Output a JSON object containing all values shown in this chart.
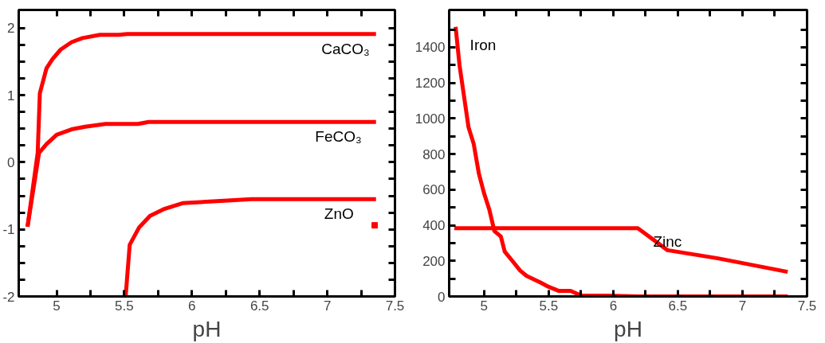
{
  "chart_data": [
    {
      "type": "line",
      "xlabel": "pH",
      "xlim": [
        4.72,
        7.5
      ],
      "ylim": [
        -2,
        2.27
      ],
      "xticks": [
        5,
        {
          "value": 5.25,
          "label": null
        },
        5.5,
        {
          "value": 5.75,
          "label": null
        },
        6,
        {
          "value": 6.25,
          "label": null
        },
        6.5,
        {
          "value": 6.75,
          "label": null
        },
        7,
        {
          "value": 7.25,
          "label": null
        },
        7.5
      ],
      "yticks": [
        -2,
        {
          "value": -1.75,
          "label": null
        },
        {
          "value": -1.5,
          "label": null
        },
        {
          "value": -1.25,
          "label": null
        },
        -1,
        {
          "value": -0.75,
          "label": null
        },
        {
          "value": -0.5,
          "label": null
        },
        {
          "value": -0.25,
          "label": null
        },
        0,
        {
          "value": 0.25,
          "label": null
        },
        {
          "value": 0.5,
          "label": null
        },
        {
          "value": 0.75,
          "label": null
        },
        1,
        {
          "value": 1.25,
          "label": null
        },
        {
          "value": 1.5,
          "label": null
        },
        {
          "value": 1.75,
          "label": null
        },
        2
      ],
      "grid": false,
      "line_style": "solid",
      "series": [
        {
          "name": "CaCO₃",
          "color": "#ff0000",
          "x": [
            4.785,
            4.86,
            4.876,
            4.9,
            4.925,
            4.97,
            5.03,
            5.11,
            5.19,
            5.32,
            5.46,
            5.52,
            7.36
          ],
          "values": [
            -0.96,
            0.14,
            1.03,
            1.21,
            1.4,
            1.54,
            1.68,
            1.79,
            1.85,
            1.9,
            1.9,
            1.91,
            1.91
          ]
        },
        {
          "name": "FeCO₃",
          "color": "#ff0000",
          "x": [
            4.785,
            4.87,
            4.925,
            5.0,
            5.11,
            5.21,
            5.36,
            5.6,
            5.68,
            7.36
          ],
          "values": [
            -0.96,
            0.14,
            0.27,
            0.41,
            0.49,
            0.53,
            0.57,
            0.57,
            0.6,
            0.6
          ]
        },
        {
          "name": "ZnO",
          "color": "#ff0000",
          "x": [
            5.51,
            5.54,
            5.61,
            5.69,
            5.79,
            5.93,
            6.44,
            7.36
          ],
          "values": [
            -2.0,
            -1.23,
            -0.97,
            -0.8,
            -0.7,
            -0.61,
            -0.55,
            -0.55
          ]
        },
        {
          "type": "scatter",
          "marker": "square",
          "color": "#ff0000",
          "x": [
            7.35
          ],
          "values": [
            -0.94
          ]
        }
      ]
    },
    {
      "type": "line",
      "xlabel": "pH",
      "xlim": [
        4.73,
        7.5
      ],
      "ylim": [
        0,
        1610
      ],
      "xticks": [
        5,
        {
          "value": 5.25,
          "label": null
        },
        5.5,
        {
          "value": 5.75,
          "label": null
        },
        6,
        {
          "value": 6.25,
          "label": null
        },
        6.5,
        {
          "value": 6.75,
          "label": null
        },
        7,
        {
          "value": 7.25,
          "label": null
        },
        7.5
      ],
      "yticks": [
        0,
        {
          "value": 100,
          "label": null
        },
        200,
        {
          "value": 300,
          "label": null
        },
        400,
        {
          "value": 500,
          "label": null
        },
        600,
        {
          "value": 700,
          "label": null
        },
        800,
        {
          "value": 900,
          "label": null
        },
        1000,
        {
          "value": 1100,
          "label": null
        },
        1200,
        {
          "value": 1300,
          "label": null
        },
        1400,
        {
          "value": 1500,
          "label": null
        }
      ],
      "grid": false,
      "line_style": "solid",
      "series": [
        {
          "name": "Iron",
          "color": "#ff0000",
          "x": [
            4.78,
            4.81,
            4.85,
            4.88,
            4.92,
            4.96,
            5.0,
            5.04,
            5.08,
            5.13,
            5.16,
            5.22,
            5.28,
            5.33,
            5.44,
            5.5,
            5.58,
            5.67,
            5.75,
            5.92,
            6.2,
            7.35
          ],
          "values": [
            1515,
            1300,
            1100,
            950,
            857,
            690,
            580,
            490,
            367,
            337,
            252,
            199,
            145,
            115,
            77,
            54,
            31,
            31,
            5,
            5,
            0,
            0
          ]
        },
        {
          "name": "Zinc",
          "color": "#ff0000",
          "x": [
            4.77,
            6.19,
            6.42,
            6.81,
            7.35
          ],
          "values": [
            383,
            383,
            260,
            214,
            138
          ]
        }
      ]
    }
  ]
}
